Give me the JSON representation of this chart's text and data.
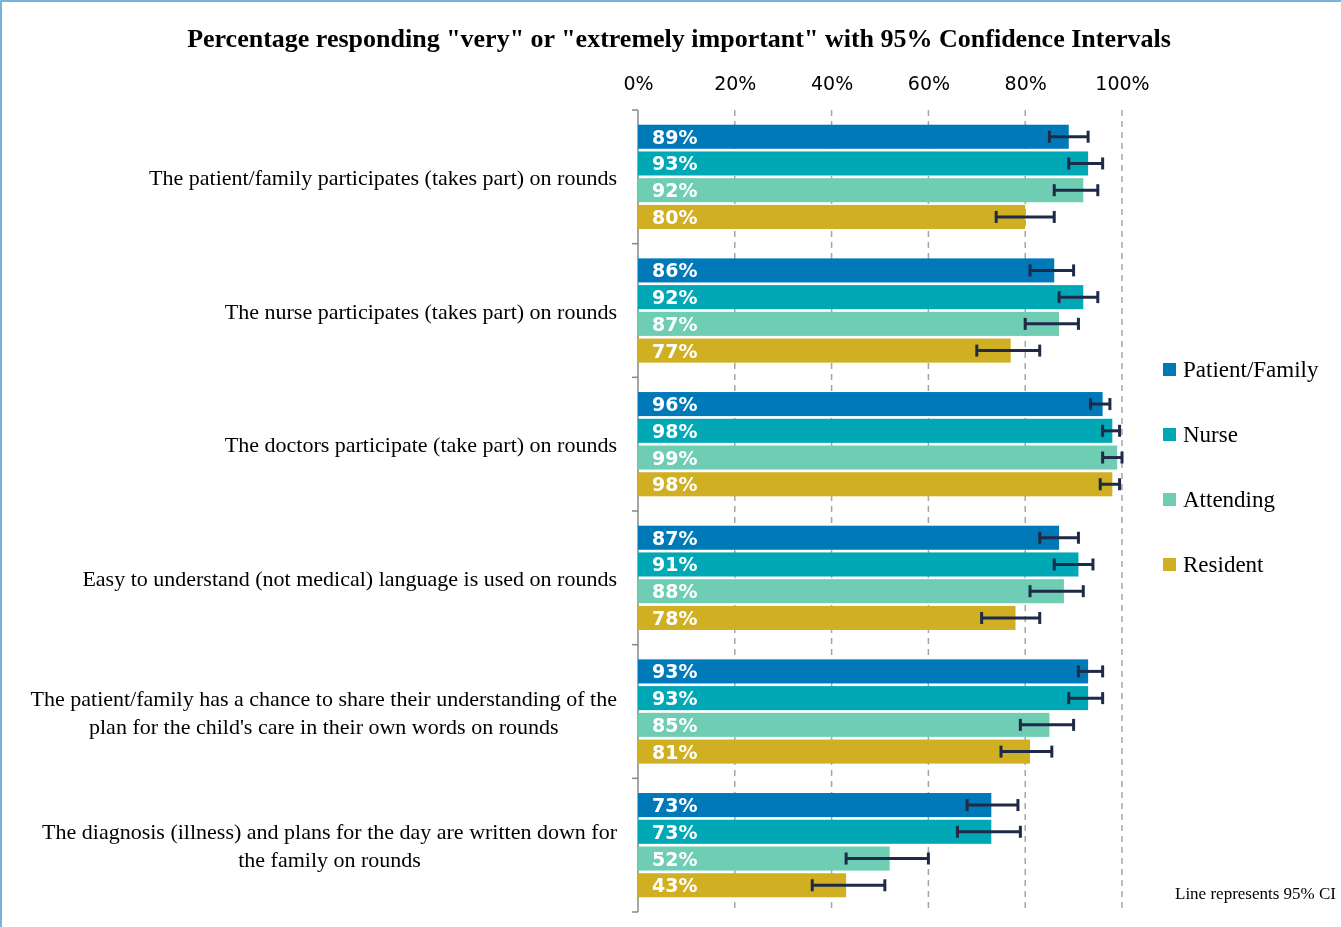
{
  "chart_data": {
    "type": "bar",
    "orientation": "horizontal",
    "title": "Percentage responding \"very\" or \"extremely important\" with 95% Confidence Intervals",
    "categories": [
      "The patient/family participates (takes part) on rounds",
      "The nurse participates (takes part) on rounds",
      "The doctors participate (take part) on rounds",
      "Easy to understand (not medical) language is used on rounds",
      "The patient/family has a chance to share their understanding of the plan for the child's care in their own words on rounds",
      "The diagnosis (illness) and plans for the day are written down for the family on rounds"
    ],
    "series": [
      {
        "name": "Patient/Family",
        "color": "#0079b8",
        "values": [
          89,
          86,
          96,
          87,
          93,
          73
        ],
        "value_labels": [
          "89%",
          "86%",
          "96%",
          "87%",
          "93%",
          "73%"
        ],
        "errors": [
          [
            85,
            93
          ],
          [
            81,
            90
          ],
          [
            93.5,
            97.5
          ],
          [
            83,
            91
          ],
          [
            91,
            96
          ],
          [
            68,
            78.5
          ]
        ]
      },
      {
        "name": "Nurse",
        "color": "#00a7b5",
        "values": [
          93,
          92,
          98,
          91,
          93,
          73
        ],
        "value_labels": [
          "93%",
          "92%",
          "98%",
          "91%",
          "93%",
          "73%"
        ],
        "errors": [
          [
            89,
            96
          ],
          [
            87,
            95
          ],
          [
            96,
            99.5
          ],
          [
            86,
            94
          ],
          [
            89,
            96
          ],
          [
            66,
            79
          ]
        ]
      },
      {
        "name": "Attending",
        "color": "#6ecdb2",
        "values": [
          92,
          87,
          99,
          88,
          85,
          52
        ],
        "value_labels": [
          "92%",
          "87%",
          "99%",
          "88%",
          "85%",
          "52%"
        ],
        "errors": [
          [
            86,
            95
          ],
          [
            80,
            91
          ],
          [
            96,
            100
          ],
          [
            81,
            92
          ],
          [
            79,
            90
          ],
          [
            43,
            60
          ]
        ]
      },
      {
        "name": "Resident",
        "color": "#d0af22",
        "values": [
          80,
          77,
          98,
          78,
          81,
          43
        ],
        "value_labels": [
          "80%",
          "77%",
          "98%",
          "78%",
          "81%",
          "43%"
        ],
        "errors": [
          [
            74,
            86
          ],
          [
            70,
            83
          ],
          [
            95.5,
            99.5
          ],
          [
            71,
            83
          ],
          [
            75,
            85.5
          ],
          [
            36,
            51
          ]
        ]
      }
    ],
    "xlim": [
      0,
      100
    ],
    "xticks": [
      {
        "value": 0,
        "label": "0%"
      },
      {
        "value": 20,
        "label": "20%"
      },
      {
        "value": 40,
        "label": "40%"
      },
      {
        "value": 60,
        "label": "60%"
      },
      {
        "value": 80,
        "label": "80%"
      },
      {
        "value": 100,
        "label": "100%"
      }
    ],
    "grid": "x",
    "legend": "right",
    "annotations": [
      "Line represents 95% CI"
    ]
  }
}
